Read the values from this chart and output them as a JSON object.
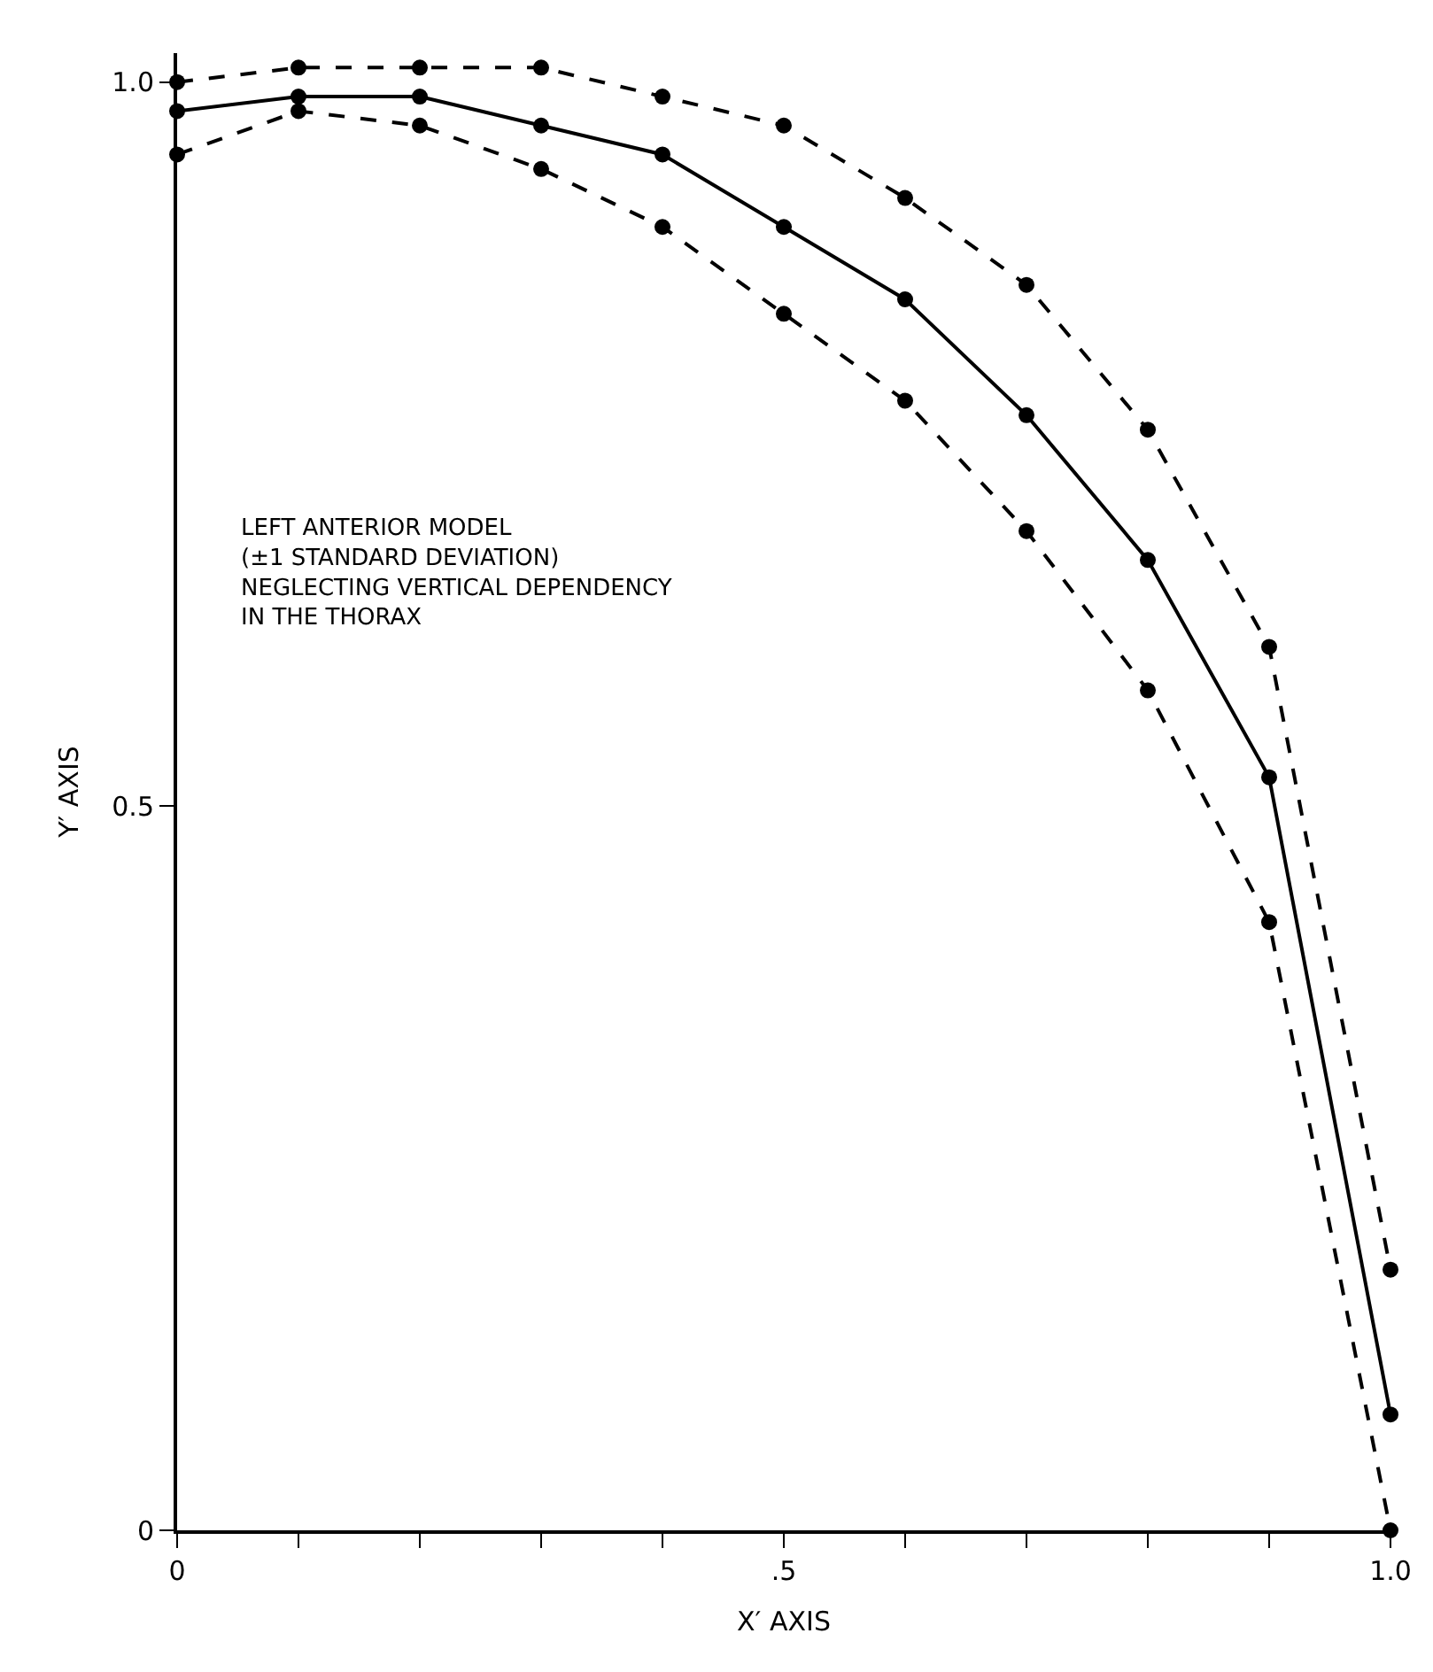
{
  "chart_data": {
    "type": "line",
    "xlabel": "X′ AXIS",
    "ylabel": "Y′ AXIS",
    "x": [
      0,
      0.1,
      0.2,
      0.3,
      0.4,
      0.5,
      0.6,
      0.7,
      0.8,
      0.9,
      1.0
    ],
    "series": [
      {
        "color": "#000000",
        "line_style": "dashed",
        "values": [
          1.0,
          1.01,
          1.01,
          1.01,
          0.99,
          0.97,
          0.92,
          0.86,
          0.76,
          0.61,
          0.18
        ]
      },
      {
        "color": "#000000",
        "line_style": "solid",
        "values": [
          0.98,
          0.99,
          0.99,
          0.97,
          0.95,
          0.9,
          0.85,
          0.77,
          0.67,
          0.52,
          0.08
        ]
      },
      {
        "color": "#000000",
        "line_style": "dashed",
        "values": [
          0.95,
          0.98,
          0.97,
          0.94,
          0.9,
          0.84,
          0.78,
          0.69,
          0.58,
          0.42,
          0.0
        ]
      }
    ],
    "marker": "circle",
    "xlim": [
      0,
      1.0
    ],
    "xticks": [
      0,
      {
        "value": 0.1,
        "label": null
      },
      {
        "value": 0.2,
        "label": null
      },
      {
        "value": 0.3,
        "label": null
      },
      {
        "value": 0.4,
        "label": null
      },
      {
        "value": 0.5,
        "label": ".5"
      },
      {
        "value": 0.6,
        "label": null
      },
      {
        "value": 0.7,
        "label": null
      },
      {
        "value": 0.8,
        "label": null
      },
      {
        "value": 0.9,
        "label": null
      },
      {
        "value": 1.0,
        "label": "1.0"
      }
    ],
    "ylim": [
      0,
      1.02
    ],
    "yticks": [
      0,
      0.5,
      {
        "value": 1.0,
        "label": "1.0"
      }
    ],
    "annotations": [
      "LEFT ANTERIOR MODEL\n(±1 STANDARD DEVIATION)\nNEGLECTING VERTICAL DEPENDENCY\nIN THE THORAX"
    ]
  }
}
